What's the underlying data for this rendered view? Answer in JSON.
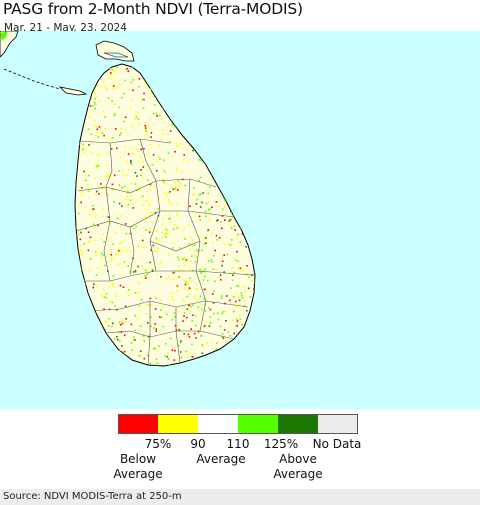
{
  "header": {
    "title": "PASG from 2-Month NDVI (Terra-MODIS)",
    "date_range": "Mar. 21 - May. 23, 2024"
  },
  "map": {
    "region_icon": "sri-lanka-map-icon",
    "ocean_color": "#ccffff",
    "land_color": "#fffde0"
  },
  "legend": {
    "colors": [
      "#ff0000",
      "#ffff00",
      "#ffffff",
      "#55ff00",
      "#1e7800",
      "#eeebef"
    ],
    "ticks": [
      "75%",
      "90",
      "110",
      "125%",
      "No Data"
    ],
    "below_label": "Below\nAverage",
    "average_label": "Average",
    "above_label": "Above\nAverage"
  },
  "footer": {
    "source": "Source: NDVI MODIS-Terra at 250-m"
  }
}
